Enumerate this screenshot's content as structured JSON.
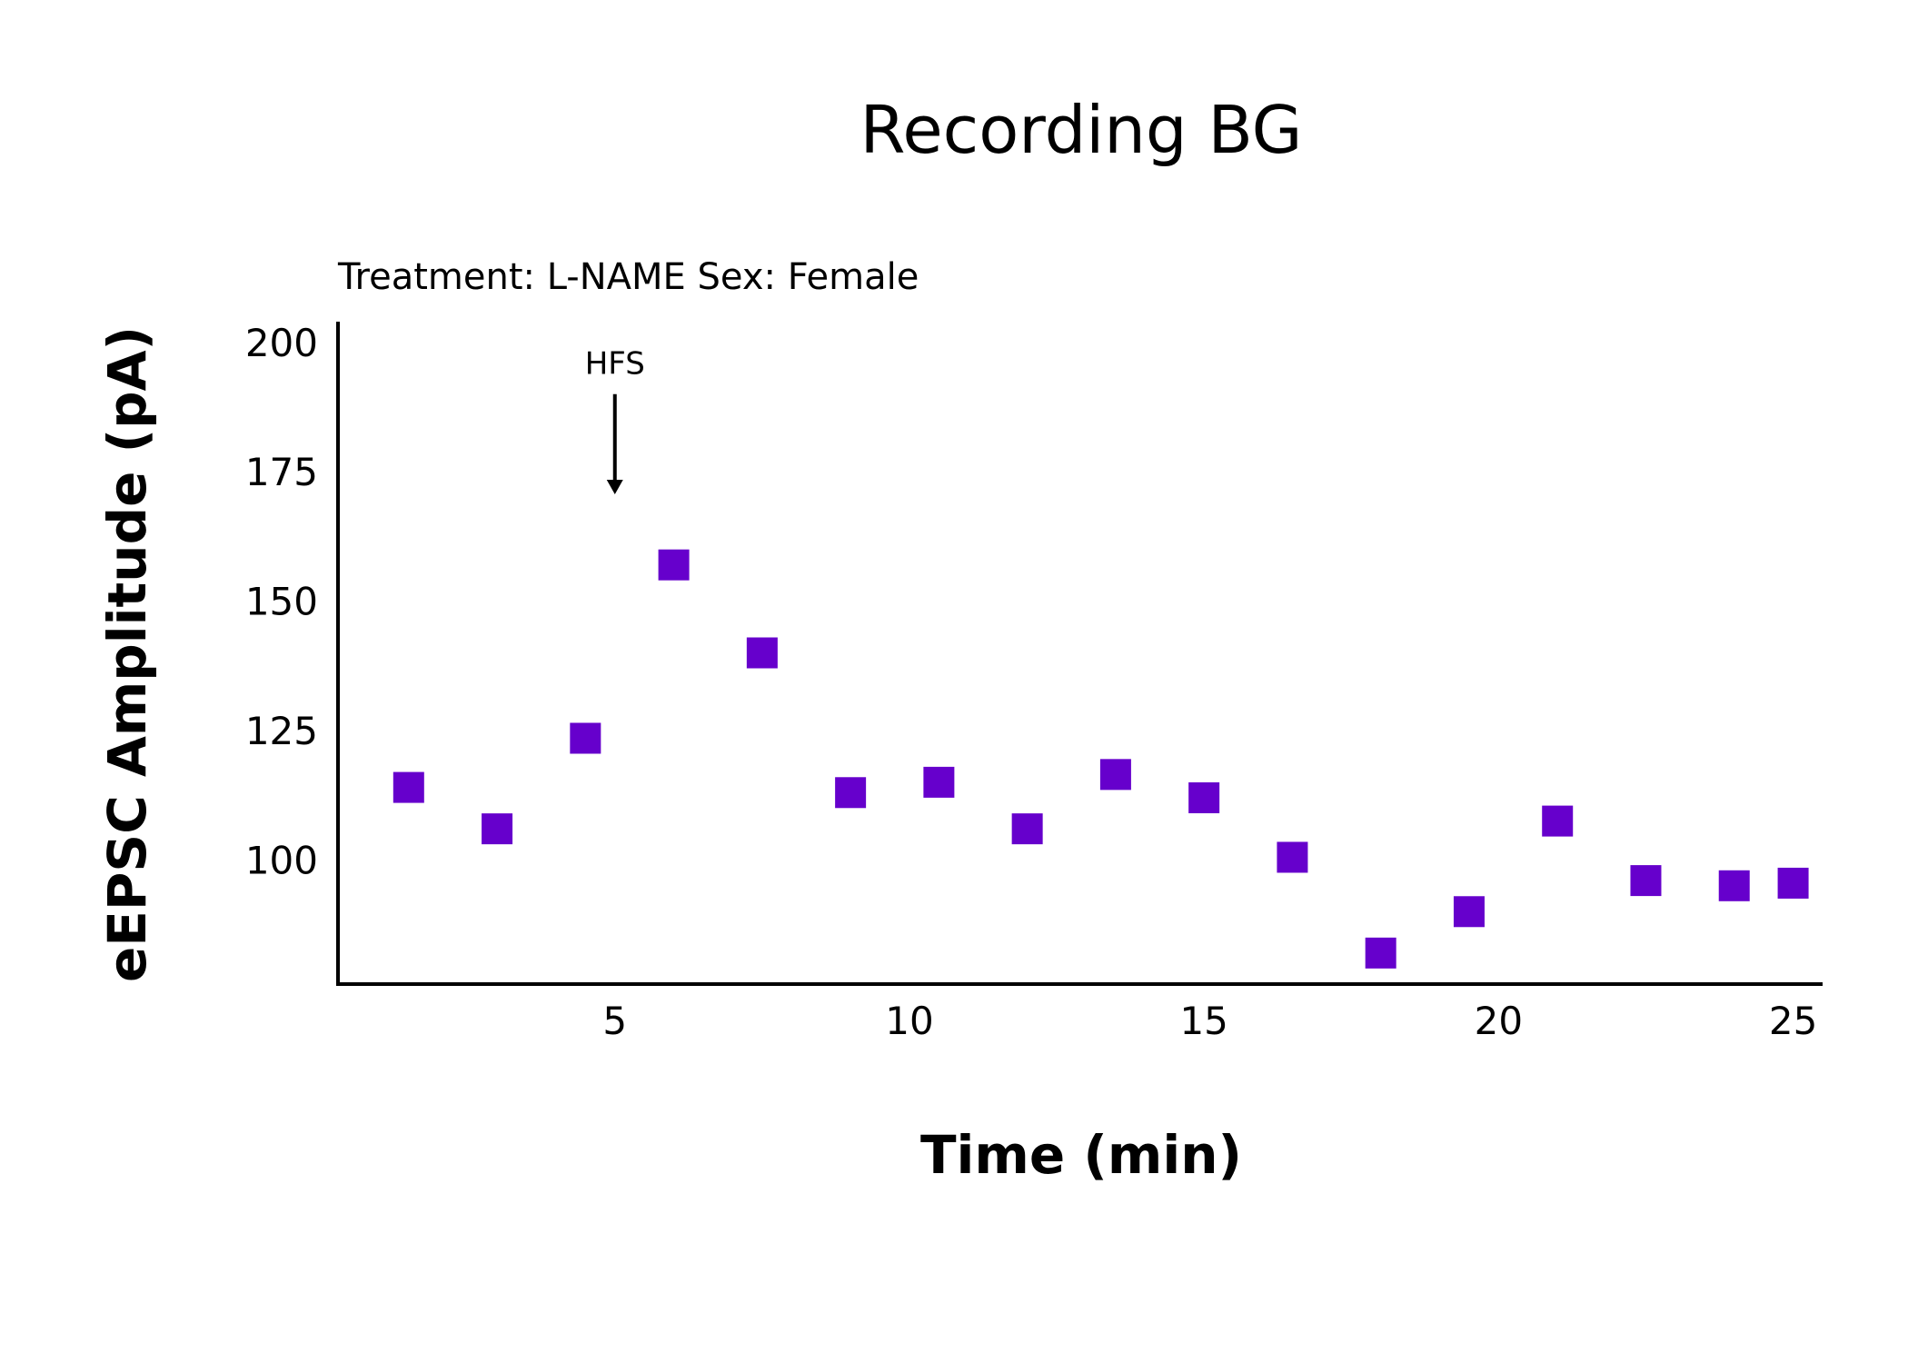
{
  "chart_data": {
    "type": "scatter",
    "title": "Recording BG",
    "subtitle": "Treatment: L-NAME  Sex: Female",
    "xlabel": "Time (min)",
    "ylabel": "eEPSC Amplitude (pA)",
    "xlim": [
      0.3,
      25.5
    ],
    "ylim": [
      76,
      204
    ],
    "x_ticks": [
      5,
      10,
      15,
      20,
      25
    ],
    "y_ticks": [
      100,
      125,
      150,
      175,
      200
    ],
    "grid": false,
    "marker": "square",
    "color": "#6600CC",
    "series": [
      {
        "x": [
          1.5,
          3,
          4.5,
          6,
          7.5,
          9,
          10.5,
          12,
          13.5,
          15,
          16.5,
          18,
          19.5,
          21,
          22.5,
          24,
          25
        ],
        "values": [
          114,
          106,
          123.5,
          157,
          140,
          113,
          115,
          106,
          116.5,
          112,
          100.5,
          82,
          90,
          107.5,
          96,
          95,
          95.5
        ]
      }
    ],
    "annotations": [
      {
        "text": "HFS",
        "x": 5,
        "y_from": 190,
        "y_to": 171,
        "type": "arrow-down"
      }
    ]
  }
}
